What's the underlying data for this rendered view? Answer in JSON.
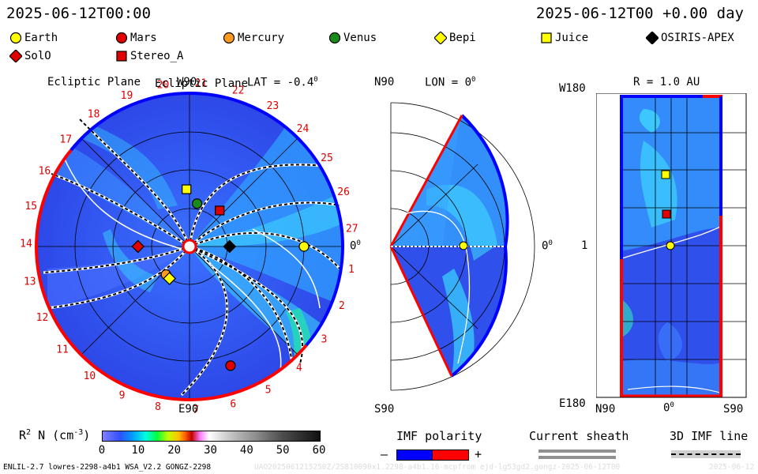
{
  "header": {
    "date_left": "2025-06-12T00:00",
    "date_right": "2025-06-12T00 +0.00 day"
  },
  "legend": [
    {
      "name": "Earth",
      "shape": "circle",
      "color": "#ffff00"
    },
    {
      "name": "Mars",
      "shape": "circle",
      "color": "#e00000"
    },
    {
      "name": "Mercury",
      "shape": "circle",
      "color": "#ff9a1e"
    },
    {
      "name": "Venus",
      "shape": "circle",
      "color": "#1a8a1a"
    },
    {
      "name": "Bepi",
      "shape": "diamond",
      "color": "#ffff00"
    },
    {
      "name": "Juice",
      "shape": "square",
      "color": "#ffff00"
    },
    {
      "name": "OSIRIS-APEX",
      "shape": "diamond",
      "color": "#000000"
    },
    {
      "name": "SolO",
      "shape": "diamond",
      "color": "#e00000"
    },
    {
      "name": "Stereo_A",
      "shape": "square",
      "color": "#e00000"
    }
  ],
  "panels": {
    "ecliptic": {
      "title": "Ecliptic Plane",
      "lat": "LAT = -0.4",
      "deg": "0",
      "top_label": "W90",
      "bottom_label": "E90",
      "right_label": "0",
      "right_deg": "0",
      "carrington": [
        "1",
        "2",
        "3",
        "4",
        "5",
        "6",
        "7",
        "8",
        "9",
        "10",
        "11",
        "12",
        "13",
        "14",
        "15",
        "16",
        "17",
        "18",
        "19",
        "20",
        "21",
        "22",
        "23",
        "24",
        "25",
        "26",
        "27"
      ]
    },
    "meridional": {
      "top_label": "N90",
      "bottom_label": "S90",
      "lon": "LON = 0",
      "deg": "0",
      "right_label": "0",
      "right_deg": "0"
    },
    "sphere": {
      "top_label": "W180",
      "bottom_label": "E180",
      "title": "R = 1.0 AU",
      "left_label": "1",
      "x_labels": [
        "N90",
        "0",
        "S90"
      ],
      "x_deg": "0"
    }
  },
  "colorbar": {
    "label_main": "R",
    "label_sup": "2",
    "label_rest": " N (cm",
    "label_sup2": "-3",
    "label_end": ")",
    "ticks": [
      "0",
      "10",
      "20",
      "30",
      "40",
      "50",
      "60"
    ],
    "range": [
      0,
      60
    ]
  },
  "imf_polarity": {
    "title": "IMF polarity",
    "minus": "–",
    "plus": "+",
    "negative_color": "#0000ff",
    "positive_color": "#ff0000"
  },
  "current_sheath": {
    "title": "Current sheath"
  },
  "imf_line": {
    "title": "3D IMF line"
  },
  "footer": {
    "model": "ENLIL-2.7 lowres-2298-a4b1 WSA_V2.2 GONGZ-2298",
    "run_id": "UAO2025061215250Z/2S810090x1.2298-a4b1.16-mcpfrom ejd-lg53gd2.gongz-2025-06-12T00",
    "date_tail": "2025-06-12"
  },
  "chart_data": {
    "type": "heatmap",
    "title": "",
    "variable": "R2 N (cm-3)",
    "value_range": [
      0,
      60
    ],
    "date": "2025-06-12T00:00",
    "offset_days": 0.0,
    "ecliptic_positions_au": [
      {
        "name": "Earth",
        "r": 1.0,
        "lon_deg": 0
      },
      {
        "name": "Mars",
        "r": 1.1,
        "lon_deg": -71
      },
      {
        "name": "Mercury",
        "r": 0.32,
        "lon_deg": -130
      },
      {
        "name": "Venus",
        "r": 0.38,
        "lon_deg": 80
      },
      {
        "name": "Bepi",
        "r": 0.33,
        "lon_deg": -122
      },
      {
        "name": "Juice",
        "r": 0.5,
        "lon_deg": 93
      },
      {
        "name": "OSIRIS-APEX",
        "r": 0.35,
        "lon_deg": 0
      },
      {
        "name": "SolO",
        "r": 0.45,
        "lon_deg": 180
      },
      {
        "name": "Stereo_A",
        "r": 0.41,
        "lon_deg": 50
      }
    ],
    "sphere_positions": [
      {
        "name": "Earth",
        "lat_deg": -0.4,
        "lon_deg": 0
      },
      {
        "name": "Stereo_A",
        "lat_deg": 1,
        "lon_deg": 50
      },
      {
        "name": "Juice",
        "lat_deg": 3,
        "lon_deg": 93
      }
    ]
  }
}
